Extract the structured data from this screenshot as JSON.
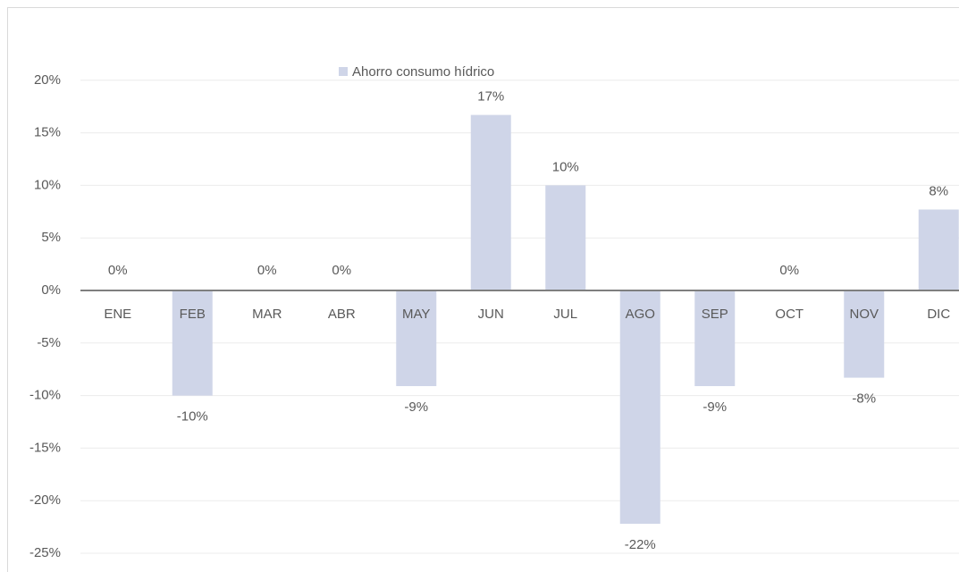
{
  "chart_data": {
    "type": "bar",
    "categories": [
      "ENE",
      "FEB",
      "MAR",
      "ABR",
      "MAY",
      "JUN",
      "JUL",
      "AGO",
      "SEP",
      "OCT",
      "NOV",
      "DIC"
    ],
    "series": [
      {
        "name": "Ahorro consumo hídrico",
        "color": "#cfd5e8",
        "values": [
          0,
          -10,
          0,
          0,
          -9.1,
          16.7,
          10,
          -22.2,
          -9.1,
          0,
          -8.3,
          7.7
        ],
        "value_labels": [
          "0%",
          "-10%",
          "0%",
          "0%",
          "-9%",
          "17%",
          "10%",
          "-22%",
          "-9%",
          "0%",
          "-8%",
          "8%"
        ]
      }
    ],
    "ylim": [
      -25,
      25
    ],
    "yticks": [
      {
        "value": -25,
        "label": "-25%"
      },
      {
        "value": -20,
        "label": "-20%"
      },
      {
        "value": -15,
        "label": "-15%"
      },
      {
        "value": -10,
        "label": "-10%"
      },
      {
        "value": -5,
        "label": "-5%"
      },
      {
        "value": 0,
        "label": "0%"
      },
      {
        "value": 5,
        "label": "5%"
      },
      {
        "value": 10,
        "label": "10%"
      },
      {
        "value": 15,
        "label": "15%"
      },
      {
        "value": 20,
        "label": "20%"
      }
    ],
    "grid": true
  }
}
